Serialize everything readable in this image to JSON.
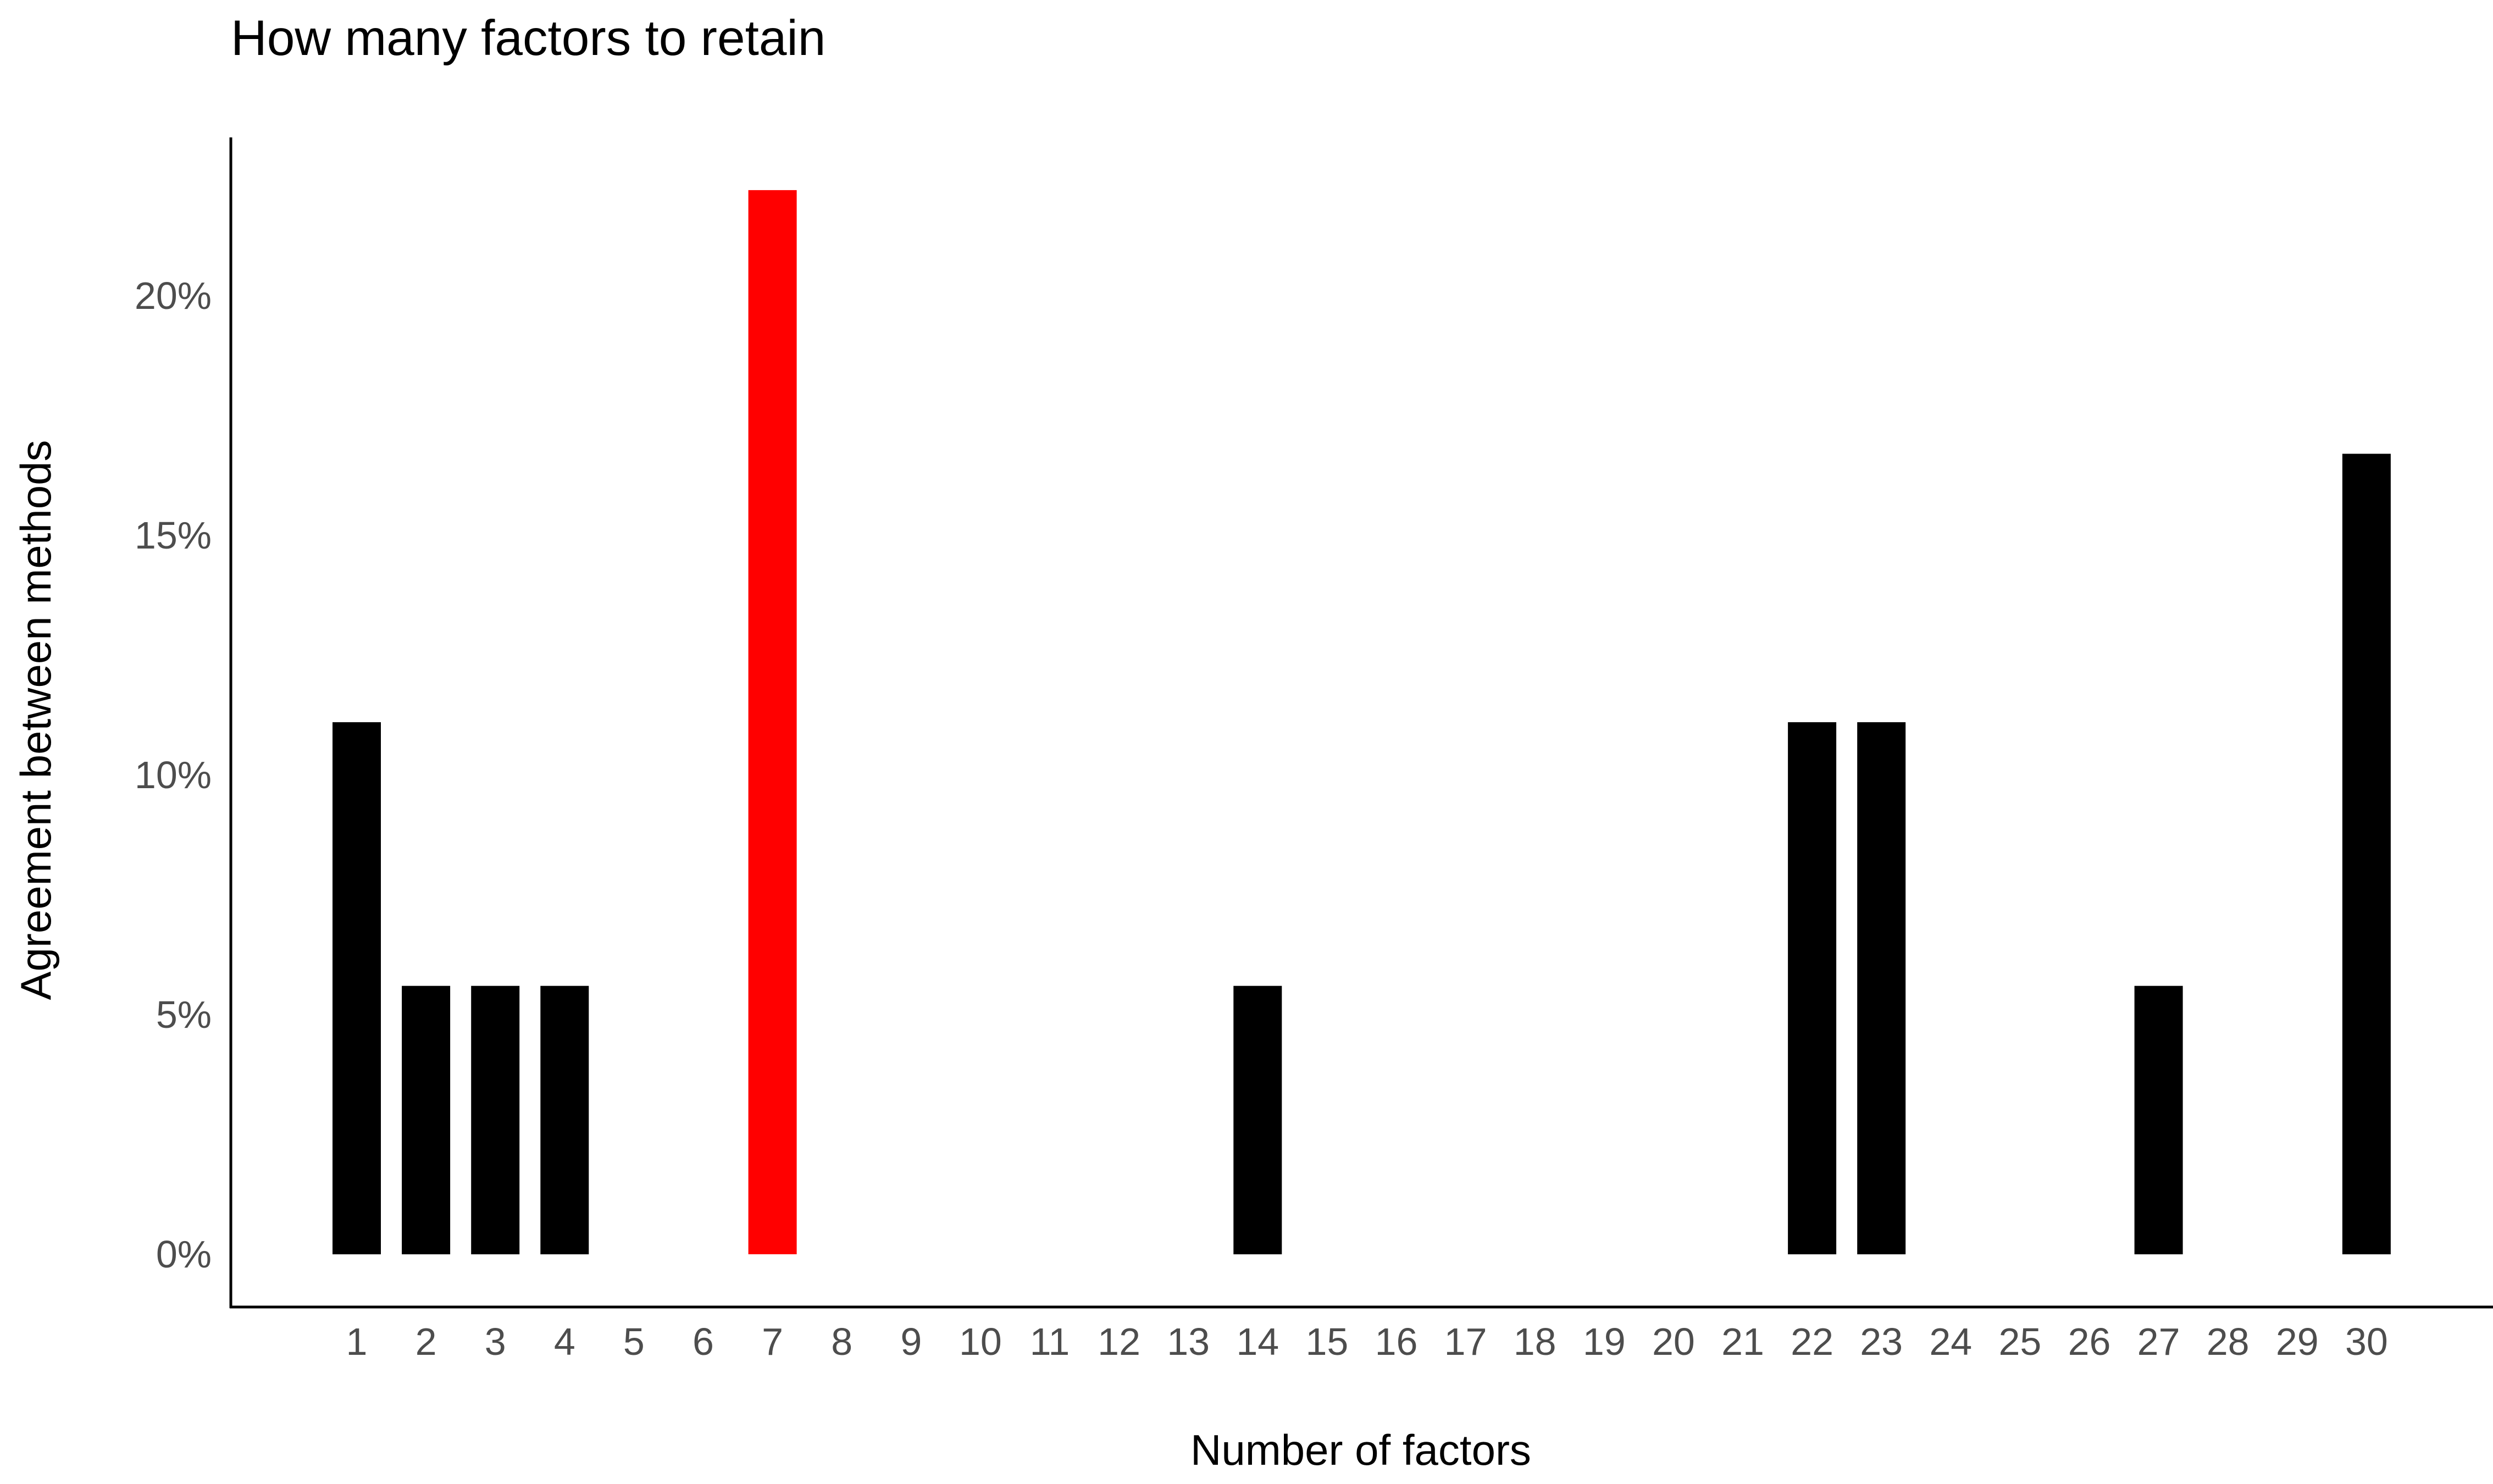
{
  "chart_data": {
    "type": "bar",
    "title": "How many factors to retain",
    "xlabel": "Number of factors",
    "ylabel": "Agreement between methods",
    "categories": [
      "1",
      "2",
      "3",
      "4",
      "5",
      "6",
      "7",
      "8",
      "9",
      "10",
      "11",
      "12",
      "13",
      "14",
      "15",
      "16",
      "17",
      "18",
      "19",
      "20",
      "21",
      "22",
      "23",
      "24",
      "25",
      "26",
      "27",
      "28",
      "29",
      "30"
    ],
    "values": [
      11.1,
      5.6,
      5.6,
      5.6,
      0,
      0,
      22.2,
      0,
      0,
      0,
      0,
      0,
      0,
      5.6,
      0,
      0,
      0,
      0,
      0,
      0,
      0,
      11.1,
      11.1,
      0,
      0,
      0,
      5.6,
      0,
      0,
      16.7
    ],
    "highlight_category": "7",
    "ylim": [
      -1.1,
      23.3
    ],
    "yticks": [
      0,
      5,
      10,
      15,
      20
    ],
    "ytick_labels": [
      "0%",
      "5%",
      "10%",
      "15%",
      "20%"
    ],
    "grid": false,
    "colors": {
      "bar": "#000000",
      "highlight": "#ff0000"
    }
  }
}
